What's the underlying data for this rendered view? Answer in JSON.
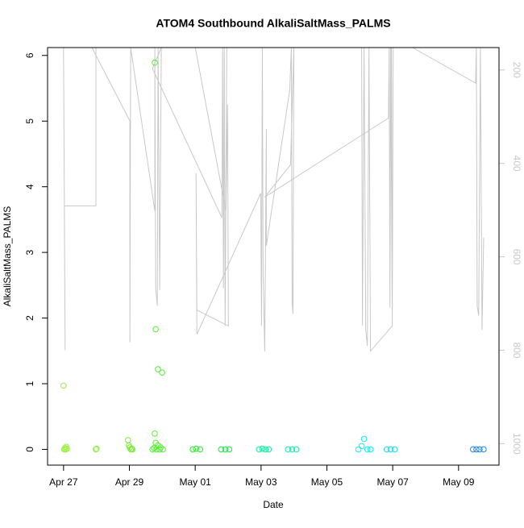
{
  "chart_data": {
    "type": "scatter",
    "title": "ATOM4 Southbound AlkaliSaltMass_PALMS",
    "x_label": "Date",
    "y_label": "AlkaliSaltMass_PALMS",
    "xlim": [
      "Apr 26 12:20",
      "May 10 05:30"
    ],
    "xticks": [
      "Apr 27",
      "Apr 29",
      "May 01",
      "May 03",
      "May 05",
      "May 07",
      "May 09"
    ],
    "ylim": [
      -0.24,
      6.12
    ],
    "yticks": [
      0,
      1,
      2,
      3,
      4,
      5,
      6
    ],
    "y2lim": [
      1046,
      152
    ],
    "y2ticks": [
      200,
      400,
      600,
      800,
      1000
    ],
    "series": [
      {
        "type": "line",
        "axis": "y2",
        "color": "#c8c8c8",
        "x": [
          "Apr 27 00:00",
          "Apr 27 01:10",
          "Apr 27 00:35",
          "Apr 27 23:35",
          "Apr 27 23:35",
          "Apr 27 20:40",
          "Apr 29 00:20",
          "Apr 29 00:20",
          "Apr 29 00:55",
          "Apr 29 18:35",
          "Apr 29 18:35",
          "Apr 29 19:10",
          "Apr 29 20:20",
          "Apr 29 20:55",
          "Apr 29 22:05",
          "Apr 29 23:15",
          "Apr 29 16:50",
          "May 01 19:25",
          "May 01 20:00",
          "May 01 20:35",
          "May 01 21:10",
          "May 01 21:50",
          "May 01 23:00",
          "May 01 00:00",
          "May 01 22:25",
          "May 01 23:35",
          "May 02 00:10",
          "May 01 01:10",
          "May 01 00:35",
          "May 01 01:10",
          "May 02 23:45",
          "May 03 00:20",
          "May 03 00:55",
          "May 03 01:30",
          "May 03 02:40",
          "May 03 03:50",
          "May 03 03:50",
          "May 03 20:55",
          "May 03 22:05",
          "May 03 22:40",
          "May 03 23:15",
          "May 03 23:55",
          "May 03 21:30",
          "May 03 02:40",
          "May 06 20:50",
          "May 06 21:25",
          "May 06 22:00",
          "May 06 22:30",
          "May 06 23:40",
          "May 07 00:20",
          "May 06 01:20",
          "May 06 01:55",
          "May 06 03:05",
          "May 06 04:20",
          "May 06 05:30",
          "May 06 06:40",
          "May 06 07:50",
          "May 06 23:40",
          "May 06 23:05",
          "May 07 14:25",
          "May 09 12:25",
          "May 09 13:00",
          "May 09 13:35",
          "May 09 14:40",
          "May 09 15:55",
          "May 09 17:05",
          "May 09 18:20"
        ],
        "values": [
          152,
          800,
          491,
          491,
          152,
          152,
          309,
          783,
          152,
          502,
          152,
          667,
          705,
          152,
          671,
          152,
          197,
          516,
          152,
          667,
          152,
          748,
          152,
          152,
          502,
          274,
          748,
          714,
          421,
          766,
          464,
          748,
          152,
          636,
          803,
          326,
          576,
          243,
          152,
          697,
          722,
          152,
          403,
          472,
          303,
          152,
          709,
          152,
          736,
          152,
          152,
          748,
          152,
          757,
          791,
          152,
          802,
          748,
          152,
          152,
          228,
          152,
          705,
          726,
          152,
          757,
          559
        ]
      },
      {
        "color": "#99ee44",
        "x": [
          "Apr 27 00:00",
          "Apr 27 00:30",
          "Apr 27 01:00",
          "Apr 27 01:30",
          "Apr 27 02:00",
          "Apr 27 02:30"
        ],
        "values": [
          0.97,
          0,
          0.02,
          0,
          0.04,
          0.01
        ]
      },
      {
        "color": "#8ef03c",
        "x": [
          "Apr 27 23:30",
          "Apr 28 00:00"
        ],
        "values": [
          0,
          0.01
        ]
      },
      {
        "color": "#77ee33",
        "x": [
          "Apr 28 23:00",
          "Apr 28 23:40",
          "Apr 29 00:20",
          "Apr 29 01:00",
          "Apr 29 01:40",
          "Apr 29 02:10"
        ],
        "values": [
          0.14,
          0.06,
          0.03,
          0,
          0.01,
          0
        ]
      },
      {
        "color": "#55ee33",
        "x": [
          "Apr 29 18:30",
          "Apr 29 19:10",
          "Apr 29 20:50",
          "Apr 29 23:50",
          "Apr 29 18:30",
          "Apr 29 19:10",
          "Apr 29 20:50",
          "Apr 29 22:40",
          "Apr 29 16:50",
          "Apr 29 18:00",
          "Apr 29 19:45",
          "Apr 29 22:05",
          "Apr 30 00:25"
        ],
        "values": [
          5.89,
          1.83,
          1.22,
          1.17,
          0.24,
          0.1,
          0.06,
          0.03,
          0,
          0.02,
          0,
          0,
          0
        ]
      },
      {
        "color": "#22ee22",
        "x": [
          "Apr 30 22:15",
          "May 01 00:35",
          "May 01 03:35"
        ],
        "values": [
          0,
          0.01,
          0
        ]
      },
      {
        "color": "#11ee44",
        "x": [
          "May 01 18:55",
          "May 01 21:50",
          "May 02 00:45"
        ],
        "values": [
          0,
          0,
          0
        ]
      },
      {
        "color": "#11ee99",
        "x": [
          "May 02 22:30",
          "May 03 00:55",
          "May 03 03:15",
          "May 03 05:35"
        ],
        "values": [
          0,
          0.01,
          0,
          0
        ]
      },
      {
        "color": "#11eeaa",
        "x": [
          "May 03 19:40",
          "May 03 22:40",
          "May 04 01:40"
        ],
        "values": [
          0,
          0,
          0
        ]
      },
      {
        "color": "#11eeee",
        "x": [
          "May 05 23:00",
          "May 06 01:20",
          "May 06 03:05",
          "May 06 05:30",
          "May 06 07:50"
        ],
        "values": [
          0,
          0.05,
          0.16,
          0,
          0
        ]
      },
      {
        "color": "#11ddee",
        "x": [
          "May 06 19:40",
          "May 06 22:30",
          "May 07 01:30"
        ],
        "values": [
          0,
          0,
          0
        ]
      },
      {
        "color": "#1e88e5",
        "x": [
          "May 09 10:35",
          "May 09 13:00",
          "May 09 15:20",
          "May 09 18:15"
        ],
        "values": [
          0,
          0,
          0,
          0
        ]
      }
    ]
  }
}
